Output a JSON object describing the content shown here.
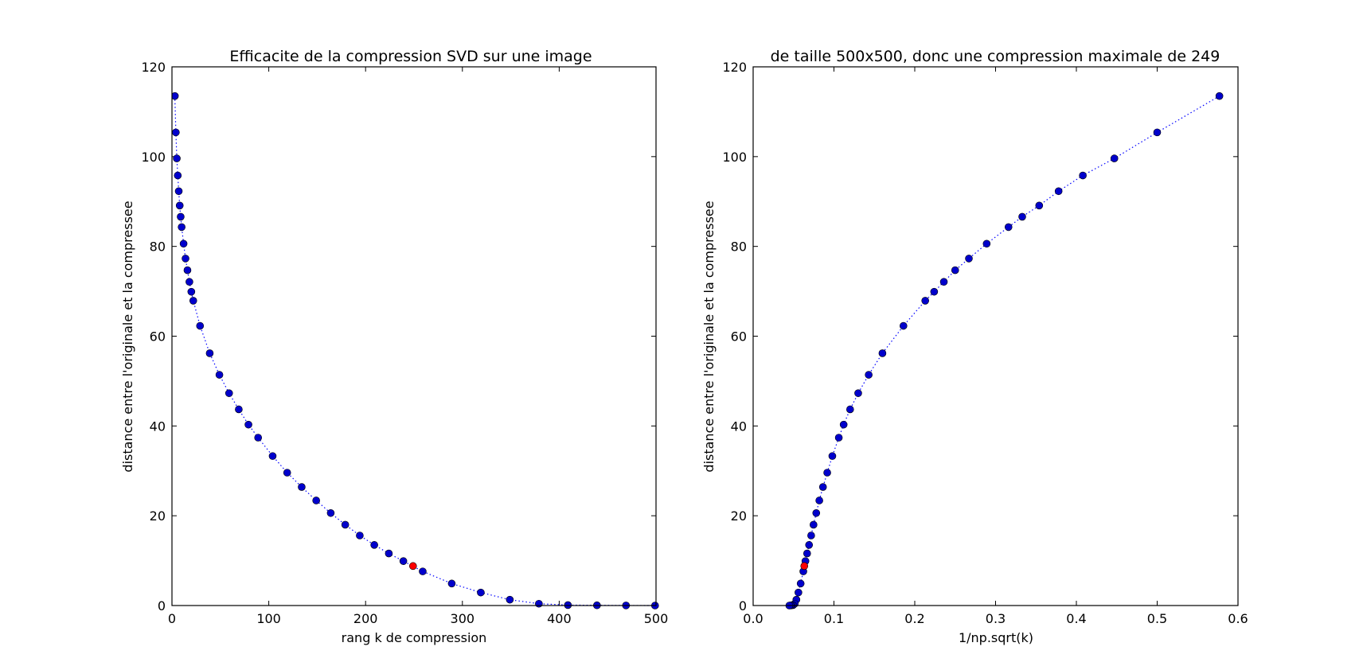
{
  "charts": [
    {
      "type": "scatter",
      "title": "Efficacite de la compression SVD sur une image",
      "xlabel": "rang k de compression",
      "ylabel": "distance entre l'originale et la compressee",
      "xlim": [
        0,
        500
      ],
      "ylim": [
        0,
        120
      ],
      "xticks": [
        0,
        100,
        200,
        300,
        400,
        500
      ],
      "yticks": [
        0,
        20,
        40,
        60,
        80,
        100,
        120
      ],
      "x": [
        3,
        4,
        5,
        6,
        7,
        8,
        9,
        10,
        12,
        14,
        16,
        18,
        20,
        22,
        29,
        39,
        49,
        59,
        69,
        79,
        89,
        104,
        119,
        134,
        149,
        164,
        179,
        194,
        209,
        224,
        239,
        259,
        289,
        319,
        349,
        379,
        409,
        439,
        469,
        499
      ],
      "y": [
        113.5,
        105.4,
        99.6,
        95.8,
        92.3,
        89.1,
        86.6,
        84.3,
        80.6,
        77.3,
        74.7,
        72.1,
        69.9,
        67.9,
        62.3,
        56.2,
        51.4,
        47.3,
        43.7,
        40.3,
        37.4,
        33.3,
        29.6,
        26.4,
        23.4,
        20.6,
        18.0,
        15.6,
        13.5,
        11.6,
        9.9,
        7.6,
        4.9,
        2.9,
        1.3,
        0.4,
        0.1,
        0.05,
        0.02,
        0.0
      ],
      "highlight": {
        "x": 249,
        "y": 8.8
      },
      "series_color": "#0000cc",
      "highlight_color": "#ff0000",
      "line_color": "#0000ff"
    },
    {
      "type": "scatter",
      "title": "de taille 500x500, donc une compression maximale de 249",
      "xlabel": "1/np.sqrt(k)",
      "ylabel": "distance entre l'originale et la compressee",
      "xlim": [
        0.0,
        0.6
      ],
      "ylim": [
        0,
        120
      ],
      "xticks": [
        0.0,
        0.1,
        0.2,
        0.3,
        0.4,
        0.5,
        0.6
      ],
      "xtick_labels": [
        "0.0",
        "0.1",
        "0.2",
        "0.3",
        "0.4",
        "0.5",
        "0.6"
      ],
      "yticks": [
        0,
        20,
        40,
        60,
        80,
        100,
        120
      ],
      "x": [
        0.577,
        0.5,
        0.447,
        0.408,
        0.378,
        0.354,
        0.333,
        0.316,
        0.289,
        0.267,
        0.25,
        0.236,
        0.224,
        0.213,
        0.186,
        0.16,
        0.143,
        0.13,
        0.12,
        0.112,
        0.106,
        0.098,
        0.0917,
        0.0864,
        0.0819,
        0.0781,
        0.0747,
        0.0718,
        0.0692,
        0.0668,
        0.0647,
        0.0621,
        0.0588,
        0.056,
        0.0535,
        0.0514,
        0.0494,
        0.0477,
        0.0462,
        0.0448
      ],
      "y": [
        113.5,
        105.4,
        99.6,
        95.8,
        92.3,
        89.1,
        86.6,
        84.3,
        80.6,
        77.3,
        74.7,
        72.1,
        69.9,
        67.9,
        62.3,
        56.2,
        51.4,
        47.3,
        43.7,
        40.3,
        37.4,
        33.3,
        29.6,
        26.4,
        23.4,
        20.6,
        18.0,
        15.6,
        13.5,
        11.6,
        9.9,
        7.6,
        4.9,
        2.9,
        1.3,
        0.4,
        0.1,
        0.05,
        0.02,
        0.0
      ],
      "highlight": {
        "x": 0.0633,
        "y": 8.8
      },
      "series_color": "#0000cc",
      "highlight_color": "#ff0000",
      "line_color": "#0000ff"
    }
  ]
}
